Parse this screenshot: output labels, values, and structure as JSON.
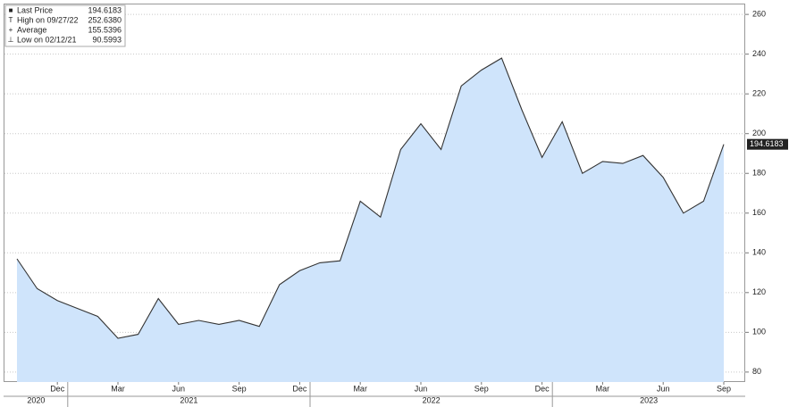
{
  "chart_data": {
    "type": "area",
    "x": [
      "2020-10",
      "2020-11",
      "2020-12",
      "2021-01",
      "2021-02",
      "2021-03",
      "2021-04",
      "2021-05",
      "2021-06",
      "2021-07",
      "2021-08",
      "2021-09",
      "2021-10",
      "2021-11",
      "2021-12",
      "2022-01",
      "2022-02",
      "2022-03",
      "2022-04",
      "2022-05",
      "2022-06",
      "2022-07",
      "2022-08",
      "2022-09",
      "2022-10",
      "2022-11",
      "2022-12",
      "2023-01",
      "2023-02",
      "2023-03",
      "2023-04",
      "2023-05",
      "2023-06",
      "2023-07",
      "2023-08",
      "2023-09"
    ],
    "values": [
      137,
      122,
      116,
      112,
      108,
      97,
      99,
      117,
      104,
      106,
      104,
      106,
      103,
      124,
      131,
      135,
      136,
      166,
      158,
      192,
      205,
      192,
      224,
      232,
      238,
      212,
      188,
      206,
      180,
      186,
      185,
      189,
      178,
      160,
      166,
      194.6183
    ],
    "color": "#333333",
    "fill": "#cfe4fb",
    "ylim": [
      75,
      265
    ],
    "yticks": [
      80,
      100,
      120,
      140,
      160,
      180,
      200,
      220,
      240,
      260
    ],
    "xticks": [
      {
        "value": "2020-12",
        "label": "Dec"
      },
      {
        "value": "2021-03",
        "label": "Mar"
      },
      {
        "value": "2021-06",
        "label": "Jun"
      },
      {
        "value": "2021-09",
        "label": "Sep"
      },
      {
        "value": "2021-12",
        "label": "Dec"
      },
      {
        "value": "2022-03",
        "label": "Mar"
      },
      {
        "value": "2022-06",
        "label": "Jun"
      },
      {
        "value": "2022-09",
        "label": "Sep"
      },
      {
        "value": "2022-12",
        "label": "Dec"
      },
      {
        "value": "2023-03",
        "label": "Mar"
      },
      {
        "value": "2023-06",
        "label": "Jun"
      },
      {
        "value": "2023-09",
        "label": "Sep"
      }
    ],
    "years": [
      "2020",
      "2021",
      "2022",
      "2023"
    ],
    "grid": true,
    "legend": [
      {
        "name": "Last Price",
        "value": 194.6183
      },
      {
        "name": "High on 09/27/22",
        "value": 252.638,
        "value_label": "252.6380"
      },
      {
        "name": "Average",
        "value": 155.5396
      },
      {
        "name": "Low on 02/12/21",
        "value": 90.5993
      }
    ]
  }
}
